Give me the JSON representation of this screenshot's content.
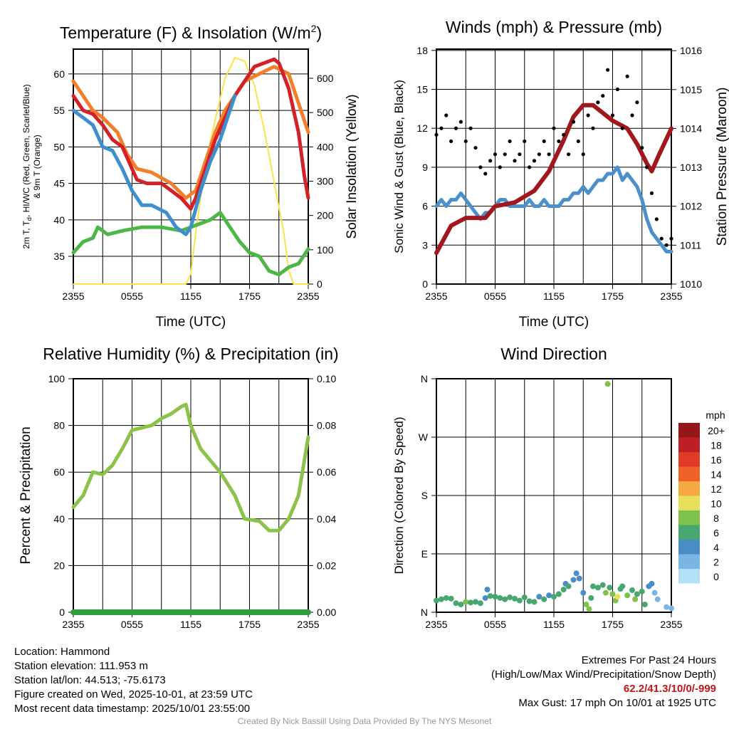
{
  "time_ticks": [
    "2355",
    "0555",
    "1155",
    "1755",
    "2355"
  ],
  "colors": {
    "temp": "#d42127",
    "dew": "#4cb748",
    "hiwc": "#3e8fcd",
    "t9m": "#f37f2b",
    "solar": "#fbe34a",
    "wind": "#4a90cc",
    "gust": "#000000",
    "pressure": "#a0181c",
    "rh": "#8bc34a",
    "precip": "#2e9e3e"
  },
  "chart_data": [
    {
      "type": "line",
      "title": "Temperature (F) & Insolation (W/m",
      "title_sup": "2",
      "title_end": ")",
      "xlabel": "Time (UTC)",
      "ylabel_line1": "2m T, T",
      "ylabel_sub": "d",
      "ylabel_line1_end": ", HI/WC (Red, Green, Scarlet/Blue)",
      "ylabel_line2": "& 9m T (Orange)",
      "y2label": "Solar Insolation (Yellow)",
      "x_unit": "hours since 2355 UTC",
      "xlim": [
        0,
        24
      ],
      "ylim": [
        31.2,
        63.4
      ],
      "y2lim": [
        0,
        685
      ],
      "yticks": [
        "35",
        "40",
        "45",
        "50",
        "55",
        "60"
      ],
      "y2ticks": [
        "0",
        "100",
        "200",
        "300",
        "400",
        "500",
        "600"
      ],
      "series": [
        {
          "name": "2m T",
          "color_key": "temp",
          "axis": "y",
          "points": [
            [
              0,
              57
            ],
            [
              1,
              55
            ],
            [
              2,
              54.5
            ],
            [
              3,
              53
            ],
            [
              4,
              51
            ],
            [
              5,
              50
            ],
            [
              6,
              47
            ],
            [
              6.5,
              45.5
            ],
            [
              7.5,
              45
            ],
            [
              9,
              45
            ],
            [
              10,
              44
            ],
            [
              11,
              43
            ],
            [
              12,
              41.5
            ],
            [
              12.5,
              43
            ],
            [
              13.5,
              47
            ],
            [
              14.5,
              51
            ],
            [
              15.5,
              54
            ],
            [
              16.5,
              57
            ],
            [
              17.5,
              59
            ],
            [
              18.5,
              61
            ],
            [
              19.5,
              61.5
            ],
            [
              20.5,
              62
            ],
            [
              21,
              61.5
            ],
            [
              22,
              58
            ],
            [
              23,
              52
            ],
            [
              23.6,
              46
            ],
            [
              24,
              43
            ]
          ]
        },
        {
          "name": "9m T",
          "color_key": "t9m",
          "axis": "y",
          "points": [
            [
              0,
              59
            ],
            [
              1,
              57
            ],
            [
              2,
              55
            ],
            [
              3,
              54
            ],
            [
              4.5,
              52
            ],
            [
              5.5,
              49
            ],
            [
              6.5,
              47
            ],
            [
              8,
              46.5
            ],
            [
              10,
              45
            ],
            [
              11.5,
              43
            ],
            [
              12.5,
              44
            ],
            [
              13.5,
              48
            ],
            [
              14.5,
              52
            ],
            [
              15.5,
              55
            ],
            [
              16.5,
              57
            ],
            [
              17.5,
              59
            ],
            [
              19,
              60
            ],
            [
              20.5,
              61
            ],
            [
              22,
              60
            ],
            [
              23,
              56
            ],
            [
              24,
              52
            ]
          ]
        },
        {
          "name": "HI/WC",
          "color_key": "hiwc",
          "axis": "y",
          "points": [
            [
              0,
              55
            ],
            [
              1,
              54
            ],
            [
              2,
              53
            ],
            [
              3,
              50
            ],
            [
              4,
              49.5
            ],
            [
              5,
              47
            ],
            [
              6,
              44
            ],
            [
              7,
              42
            ],
            [
              8,
              42
            ],
            [
              9.5,
              41
            ],
            [
              10.5,
              39
            ],
            [
              11.5,
              38
            ],
            [
              12,
              39
            ],
            [
              13,
              44
            ],
            [
              14,
              48
            ],
            [
              15,
              51
            ],
            [
              16,
              55
            ],
            [
              16.5,
              57
            ]
          ]
        },
        {
          "name": "Td",
          "color_key": "dew",
          "axis": "y",
          "points": [
            [
              0,
              35.5
            ],
            [
              1,
              37
            ],
            [
              2,
              37.5
            ],
            [
              2.5,
              39
            ],
            [
              3.5,
              38
            ],
            [
              5,
              38.5
            ],
            [
              7,
              39
            ],
            [
              9,
              39
            ],
            [
              11,
              38.5
            ],
            [
              12,
              39
            ],
            [
              13,
              39.5
            ],
            [
              14,
              40
            ],
            [
              15,
              41
            ],
            [
              16,
              39
            ],
            [
              17,
              37
            ],
            [
              18,
              35.5
            ],
            [
              19,
              35
            ],
            [
              20,
              33
            ],
            [
              21,
              32.5
            ],
            [
              22,
              33.5
            ],
            [
              23,
              34
            ],
            [
              24,
              36
            ]
          ]
        },
        {
          "name": "Solar Insolation",
          "color_key": "solar",
          "axis": "y2",
          "points": [
            [
              0,
              0
            ],
            [
              11.5,
              0
            ],
            [
              12,
              30
            ],
            [
              12.5,
              150
            ],
            [
              13.5,
              350
            ],
            [
              14.5,
              480
            ],
            [
              15.5,
              600
            ],
            [
              16.5,
              660
            ],
            [
              17.5,
              650
            ],
            [
              18.5,
              580
            ],
            [
              19.5,
              450
            ],
            [
              20.5,
              300
            ],
            [
              21.5,
              150
            ],
            [
              22,
              40
            ],
            [
              22.5,
              0
            ],
            [
              24,
              0
            ]
          ]
        }
      ]
    },
    {
      "type": "line",
      "title": "Winds (mph) & Pressure (mb)",
      "xlabel": "Time (UTC)",
      "ylabel": "Sonic Wind & Gust (Blue, Black)",
      "y2label": "Station Pressure (Maroon)",
      "xlim": [
        0,
        24
      ],
      "ylim": [
        0,
        18.1
      ],
      "y2lim": [
        1010,
        1016.04
      ],
      "yticks": [
        "0",
        "3",
        "6",
        "9",
        "12",
        "15",
        "18"
      ],
      "y2ticks": [
        "1010",
        "1011",
        "1012",
        "1013",
        "1014",
        "1015",
        "1016"
      ],
      "sonic_wind_step_hours": 0.5,
      "sonic_wind": [
        6,
        6.5,
        6,
        6.5,
        6.5,
        7,
        6.5,
        6,
        5.5,
        5,
        5.5,
        5.5,
        6,
        6.5,
        6.5,
        6,
        6,
        6,
        6,
        6.5,
        6,
        6,
        6.5,
        6,
        6,
        6,
        6.5,
        6.5,
        7,
        7,
        7.5,
        7,
        7.5,
        8,
        8,
        8.5,
        8.5,
        9,
        8,
        8.5,
        8,
        7.5,
        6.5,
        5,
        4,
        3.5,
        3,
        2.5,
        2.5
      ],
      "gust_step_hours": 0.5,
      "gust": [
        11.5,
        12,
        13,
        11,
        12,
        12.5,
        11,
        12,
        10.5,
        9,
        8.5,
        9.5,
        10,
        9,
        10,
        11,
        9.5,
        10,
        11,
        9,
        9.5,
        10,
        11,
        10,
        12,
        11,
        11.5,
        10,
        12.5,
        11,
        10,
        13,
        12,
        14,
        14.5,
        16.5,
        13,
        15,
        12,
        16,
        13,
        14,
        10.5,
        9,
        7,
        5,
        3.5,
        3,
        3.5
      ],
      "pressure": [
        [
          0,
          1010.8
        ],
        [
          1.5,
          1011.5
        ],
        [
          3,
          1011.7
        ],
        [
          5,
          1011.7
        ],
        [
          6,
          1012
        ],
        [
          8,
          1012.1
        ],
        [
          10,
          1012.4
        ],
        [
          11.5,
          1012.9
        ],
        [
          13,
          1013.7
        ],
        [
          14,
          1014.3
        ],
        [
          15,
          1014.6
        ],
        [
          16,
          1014.6
        ],
        [
          18,
          1014.2
        ],
        [
          19.5,
          1014
        ],
        [
          20.5,
          1013.6
        ],
        [
          21.5,
          1013.1
        ],
        [
          22,
          1012.9
        ],
        [
          22.7,
          1013.3
        ],
        [
          24,
          1014
        ]
      ]
    },
    {
      "type": "line",
      "title": "Relative Humidity (%) & Precipitation (in)",
      "ylabel": "Percent & Precipitation",
      "xlim": [
        0,
        24
      ],
      "ylim": [
        0,
        100
      ],
      "y2lim": [
        0,
        0.1
      ],
      "yticks": [
        "0",
        "20",
        "40",
        "60",
        "80",
        "100"
      ],
      "y2ticks": [
        "0.00",
        "0.02",
        "0.04",
        "0.06",
        "0.08",
        "0.10"
      ],
      "rh": [
        [
          0,
          45
        ],
        [
          1,
          50
        ],
        [
          1.5,
          55
        ],
        [
          2,
          60
        ],
        [
          3,
          59
        ],
        [
          4,
          63
        ],
        [
          5,
          70
        ],
        [
          6,
          78
        ],
        [
          7,
          79
        ],
        [
          8,
          80
        ],
        [
          9,
          83
        ],
        [
          10,
          85
        ],
        [
          11,
          88
        ],
        [
          11.5,
          89
        ],
        [
          12,
          80
        ],
        [
          13,
          70
        ],
        [
          14,
          65
        ],
        [
          15,
          60
        ],
        [
          16.5,
          50
        ],
        [
          17.5,
          40
        ],
        [
          19,
          39
        ],
        [
          20,
          35
        ],
        [
          21,
          35
        ],
        [
          22,
          40
        ],
        [
          23,
          50
        ],
        [
          24,
          75
        ]
      ],
      "precip": [
        [
          0,
          0
        ],
        [
          24,
          0
        ]
      ]
    },
    {
      "type": "scatter",
      "title": "Wind Direction",
      "ylabel": "Direction (Colored By Speed)",
      "xlim": [
        0,
        24
      ],
      "ylim": [
        0,
        360
      ],
      "yticks": [
        "N",
        "E",
        "S",
        "W",
        "N"
      ],
      "legend_title": "mph",
      "legend": [
        {
          "label": "20+",
          "color": "#931719"
        },
        {
          "label": "18",
          "color": "#be1e26"
        },
        {
          "label": "16",
          "color": "#e03a28"
        },
        {
          "label": "14",
          "color": "#f06128"
        },
        {
          "label": "12",
          "color": "#f7a943"
        },
        {
          "label": "10",
          "color": "#e6e05a"
        },
        {
          "label": "8",
          "color": "#7dc24a"
        },
        {
          "label": "6",
          "color": "#48a770"
        },
        {
          "label": "4",
          "color": "#4a8cc6"
        },
        {
          "label": "2",
          "color": "#7ab6e3"
        },
        {
          "label": "0",
          "color": "#b3e0f7"
        }
      ],
      "points": [
        [
          0,
          18,
          6
        ],
        [
          0.5,
          20,
          6
        ],
        [
          1,
          22,
          6
        ],
        [
          1.5,
          21,
          6
        ],
        [
          2,
          14,
          6
        ],
        [
          2.5,
          12,
          6
        ],
        [
          3,
          16,
          8
        ],
        [
          3.5,
          15,
          6
        ],
        [
          4,
          16,
          6
        ],
        [
          4.5,
          14,
          6
        ],
        [
          5,
          22,
          4
        ],
        [
          5.2,
          35,
          4
        ],
        [
          5.5,
          25,
          6
        ],
        [
          6,
          24,
          6
        ],
        [
          6.5,
          22,
          6
        ],
        [
          7,
          20,
          6
        ],
        [
          7.5,
          23,
          6
        ],
        [
          8,
          21,
          6
        ],
        [
          8.5,
          18,
          6
        ],
        [
          9,
          23,
          6
        ],
        [
          9.5,
          17,
          6
        ],
        [
          10,
          16,
          6
        ],
        [
          10.5,
          24,
          4
        ],
        [
          11,
          20,
          6
        ],
        [
          11.5,
          26,
          4
        ],
        [
          12,
          24,
          6
        ],
        [
          12.5,
          28,
          6
        ],
        [
          13,
          35,
          6
        ],
        [
          13.2,
          44,
          4
        ],
        [
          13.5,
          40,
          6
        ],
        [
          14,
          50,
          4
        ],
        [
          14.3,
          60,
          4
        ],
        [
          14.6,
          52,
          4
        ],
        [
          15,
          30,
          4
        ],
        [
          15.3,
          12,
          8
        ],
        [
          15.6,
          5,
          8
        ],
        [
          15.8,
          22,
          6
        ],
        [
          16,
          40,
          6
        ],
        [
          16.5,
          38,
          6
        ],
        [
          17,
          42,
          6
        ],
        [
          17.3,
          30,
          8
        ],
        [
          17.5,
          352,
          8
        ],
        [
          17.7,
          38,
          6
        ],
        [
          18,
          28,
          8
        ],
        [
          18.3,
          18,
          8
        ],
        [
          18.5,
          24,
          10
        ],
        [
          18.8,
          36,
          6
        ],
        [
          19,
          40,
          6
        ],
        [
          19.5,
          26,
          8
        ],
        [
          20,
          34,
          6
        ],
        [
          20.3,
          20,
          8
        ],
        [
          20.5,
          28,
          6
        ],
        [
          21,
          32,
          6
        ],
        [
          21.3,
          12,
          6
        ],
        [
          21.7,
          40,
          4
        ],
        [
          22,
          44,
          4
        ],
        [
          22.3,
          30,
          2
        ],
        [
          22.6,
          20,
          2
        ],
        [
          23.5,
          8,
          2
        ],
        [
          24,
          6,
          2
        ]
      ]
    }
  ],
  "info": {
    "location": "Location: Hammond",
    "elevation": "Station elevation: 111.953 m",
    "latlon": "Station lat/lon: 44.513; -75.6173",
    "created": "Figure created on Wed, 2025-10-01, at 23:59 UTC",
    "recent": "Most recent data timestamp: 2025/10/01 23:55:00"
  },
  "extremes": {
    "title": "Extremes For Past 24 Hours",
    "subtitle": "(High/Low/Max Wind/Precipitation/Snow Depth)",
    "values": "62.2/41.3/10/0/-999",
    "max_gust": "Max Gust: 17 mph On 10/01 at 1925 UTC"
  },
  "credit": "Created By Nick Bassill Using Data Provided By The NYS Mesonet"
}
